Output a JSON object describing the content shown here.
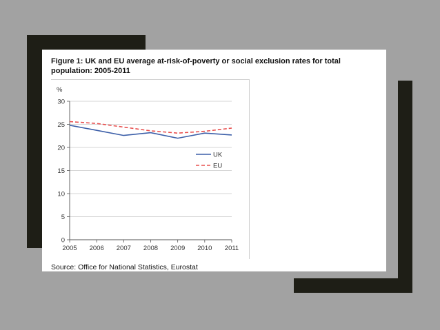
{
  "colors": {
    "page_background": "#a2a2a2",
    "frame_bars": "#1e1e16",
    "card": "#ffffff",
    "uk_line": "#3b5ea8",
    "eu_line": "#e8504f",
    "gridline": "#c8c8c8"
  },
  "figure": {
    "title": "Figure 1: UK and EU average at-risk-of-poverty or social exclusion rates for total population: 2005-2011",
    "source": "Source: Office for National Statistics, Eurostat"
  },
  "chart_data": {
    "type": "line",
    "title": "",
    "xlabel": "",
    "ylabel": "%",
    "x": [
      "2005",
      "2006",
      "2007",
      "2008",
      "2009",
      "2010",
      "2011"
    ],
    "yticks": [
      "0",
      "5",
      "10",
      "15",
      "20",
      "25",
      "30"
    ],
    "ylim": [
      0,
      30
    ],
    "grid": true,
    "legend_position": "right",
    "series": [
      {
        "name": "UK",
        "values": [
          24.8,
          23.7,
          22.6,
          23.2,
          22.0,
          23.1,
          22.7
        ],
        "style": "solid",
        "color": "#3b5ea8"
      },
      {
        "name": "EU",
        "values": [
          25.6,
          25.2,
          24.4,
          23.6,
          23.1,
          23.5,
          24.2
        ],
        "style": "dashed",
        "color": "#e8504f"
      }
    ]
  }
}
